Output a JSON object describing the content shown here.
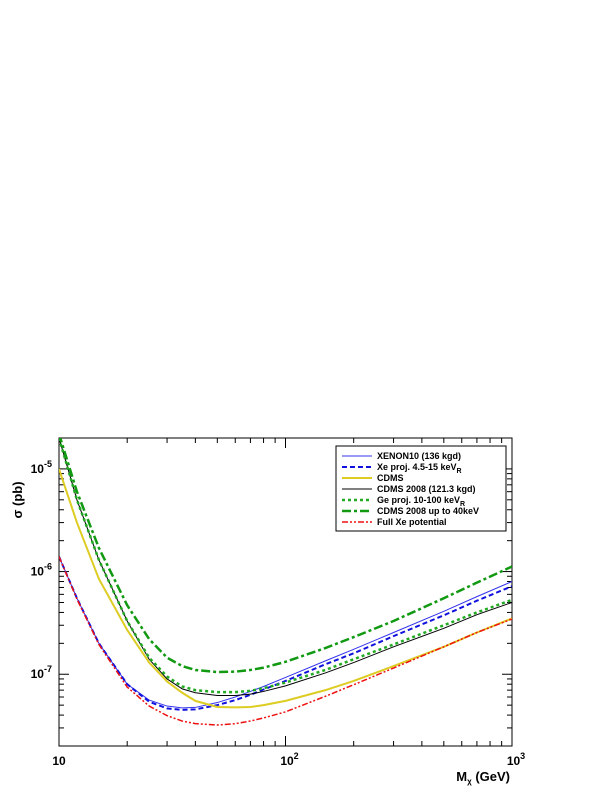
{
  "chart_data": {
    "type": "line",
    "xscale": "log",
    "yscale": "log",
    "xlim": [
      10,
      1000
    ],
    "ylim": [
      2e-08,
      2e-05
    ],
    "xlabel": "M_χ (GeV)",
    "ylabel": "σ (pb)",
    "xticks": [
      {
        "label": "10",
        "value": 10
      },
      {
        "label": "10^2",
        "value": 100
      },
      {
        "label": "10^3",
        "value": 1000
      }
    ],
    "yticks": [
      {
        "label": "10^-7",
        "value": 1e-07
      },
      {
        "label": "10^-6",
        "value": 1e-06
      },
      {
        "label": "10^-5",
        "value": 1e-05
      }
    ],
    "grid": false,
    "legend_position": "top-right",
    "series": [
      {
        "name": "XENON10 (136 kgd)",
        "color": "#3333ee",
        "style": "solid",
        "width": 1,
        "x": [
          10,
          12,
          15,
          20,
          25,
          30,
          35,
          40,
          50,
          60,
          70,
          80,
          100,
          150,
          200,
          300,
          500,
          700,
          1000
        ],
        "y": [
          1.4e-06,
          5.5e-07,
          2e-07,
          8e-08,
          5.6e-08,
          4.9e-08,
          4.7e-08,
          4.75e-08,
          5.3e-08,
          6e-08,
          6.8e-08,
          7.6e-08,
          9.3e-08,
          1.35e-07,
          1.75e-07,
          2.55e-07,
          4.1e-07,
          5.7e-07,
          8e-07
        ]
      },
      {
        "name": "Xe proj. 4.5-15 keV_R",
        "color": "#1111dd",
        "style": "dashed",
        "width": 2,
        "x": [
          10,
          12,
          15,
          20,
          25,
          30,
          35,
          40,
          50,
          60,
          70,
          80,
          100,
          150,
          200,
          300,
          500,
          700,
          1000
        ],
        "y": [
          1.4e-06,
          5.5e-07,
          2e-07,
          8e-08,
          5.4e-08,
          4.65e-08,
          4.5e-08,
          4.55e-08,
          5e-08,
          5.6e-08,
          6.3e-08,
          7.1e-08,
          8.6e-08,
          1.25e-07,
          1.6e-07,
          2.35e-07,
          3.75e-07,
          5.2e-07,
          7.2e-07
        ]
      },
      {
        "name": "CDMS",
        "color": "#ddcc22",
        "style": "solid",
        "width": 2,
        "x": [
          10,
          12,
          15,
          20,
          25,
          30,
          35,
          40,
          50,
          60,
          70,
          80,
          100,
          150,
          200,
          300,
          500,
          700,
          1000
        ],
        "y": [
          1e-05,
          3e-06,
          8.5e-07,
          2.7e-07,
          1.3e-07,
          8.5e-08,
          6.6e-08,
          5.5e-08,
          4.8e-08,
          4.75e-08,
          4.8e-08,
          5e-08,
          5.5e-08,
          7e-08,
          8.6e-08,
          1.2e-07,
          1.85e-07,
          2.55e-07,
          3.5e-07
        ]
      },
      {
        "name": "CDMS 2008 (121.3 kgd)",
        "color": "#000000",
        "style": "solid",
        "width": 1,
        "x": [
          10,
          12,
          15,
          20,
          25,
          30,
          35,
          40,
          50,
          60,
          70,
          80,
          100,
          150,
          200,
          300,
          500,
          700,
          1000
        ],
        "y": [
          2e-05,
          5e-06,
          1.3e-06,
          3.3e-07,
          1.4e-07,
          9e-08,
          7.2e-08,
          6.6e-08,
          6.2e-08,
          6.2e-08,
          6.4e-08,
          6.8e-08,
          7.7e-08,
          1.03e-07,
          1.3e-07,
          1.85e-07,
          2.8e-07,
          3.8e-07,
          5e-07
        ]
      },
      {
        "name": "Ge proj. 10-100 keV_R",
        "color": "#22aa22",
        "style": "dotted",
        "width": 2.5,
        "x": [
          10,
          12,
          15,
          20,
          25,
          30,
          35,
          40,
          50,
          60,
          70,
          80,
          100,
          150,
          200,
          300,
          500,
          700,
          1000
        ],
        "y": [
          2e-05,
          5e-06,
          1.3e-06,
          3.3e-07,
          1.45e-07,
          9.5e-08,
          7.6e-08,
          7e-08,
          6.7e-08,
          6.7e-08,
          6.9e-08,
          7.3e-08,
          8.3e-08,
          1.1e-07,
          1.4e-07,
          1.95e-07,
          3e-07,
          4e-07,
          5.3e-07
        ]
      },
      {
        "name": "CDMS 2008 up to 40keV",
        "color": "#119911",
        "style": "dashdot",
        "width": 2.5,
        "x": [
          10,
          12,
          15,
          20,
          25,
          30,
          35,
          40,
          50,
          60,
          70,
          80,
          100,
          150,
          200,
          300,
          500,
          700,
          1000
        ],
        "y": [
          2.2e-05,
          6e-06,
          1.7e-06,
          4.7e-07,
          2.2e-07,
          1.45e-07,
          1.2e-07,
          1.1e-07,
          1.05e-07,
          1.06e-07,
          1.1e-07,
          1.16e-07,
          1.32e-07,
          1.8e-07,
          2.3e-07,
          3.3e-07,
          5.5e-07,
          7.8e-07,
          1.12e-06
        ]
      },
      {
        "name": "Full Xe potential",
        "color": "#ee1111",
        "style": "dashdotdot",
        "width": 1.5,
        "x": [
          10,
          12,
          15,
          20,
          25,
          30,
          35,
          40,
          50,
          60,
          70,
          80,
          100,
          150,
          200,
          300,
          500,
          700,
          1000
        ],
        "y": [
          1.4e-06,
          5.4e-07,
          1.95e-07,
          7.5e-08,
          4.9e-08,
          3.95e-08,
          3.5e-08,
          3.3e-08,
          3.2e-08,
          3.3e-08,
          3.5e-08,
          3.75e-08,
          4.3e-08,
          6.1e-08,
          7.9e-08,
          1.15e-07,
          1.85e-07,
          2.55e-07,
          3.45e-07
        ]
      }
    ]
  }
}
